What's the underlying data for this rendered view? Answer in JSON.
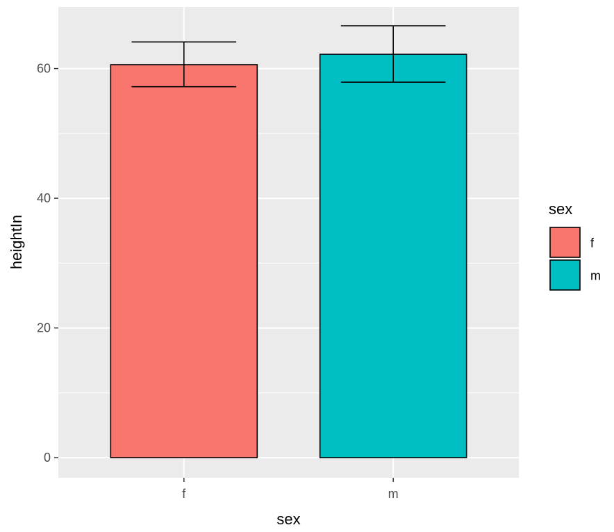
{
  "chart_data": {
    "type": "bar",
    "categories": [
      "f",
      "m"
    ],
    "values": [
      60.6,
      62.2
    ],
    "error_bars": [
      {
        "low": 57.2,
        "high": 64.1
      },
      {
        "low": 57.9,
        "high": 66.6
      }
    ],
    "xlabel": "sex",
    "ylabel": "heightIn",
    "ylim": [
      -3.1,
      69.5
    ],
    "yticks": [
      0,
      20,
      40,
      60
    ],
    "ytick_labels": [
      "0",
      "20",
      "40",
      "60"
    ],
    "grid": true,
    "legend": {
      "title": "sex",
      "position": "right",
      "entries": [
        {
          "label": "f",
          "color": "#F8766D"
        },
        {
          "label": "m",
          "color": "#00BFC4"
        }
      ]
    },
    "colors": [
      "#F8766D",
      "#00BFC4"
    ],
    "panel_background": "#EBEBEB"
  }
}
